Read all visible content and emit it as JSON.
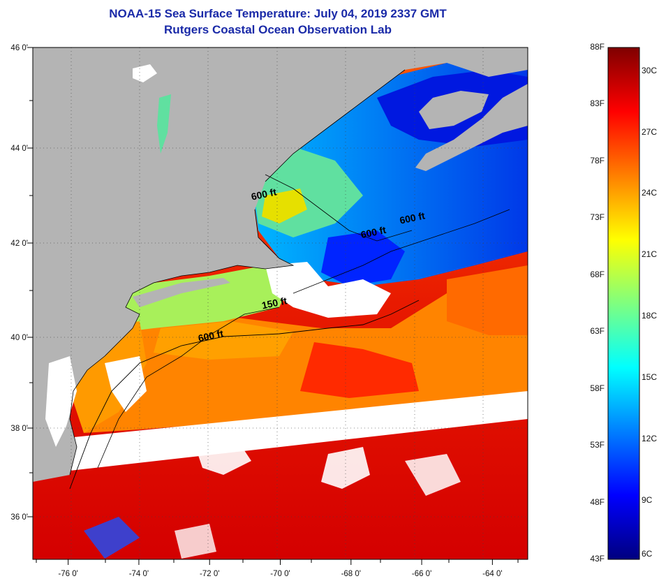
{
  "title": "NOAA-15 Sea Surface Temperature:  July 04, 2019 2337 GMT",
  "subtitle": "Rutgers Coastal Ocean Observation Lab",
  "map": {
    "lon_range": [
      -77,
      -63
    ],
    "lat_range": [
      35,
      46
    ],
    "lon_ticks": [
      {
        "value": -76,
        "label": "-76 0'"
      },
      {
        "value": -74,
        "label": "-74 0'"
      },
      {
        "value": -72,
        "label": "-72 0'"
      },
      {
        "value": -70,
        "label": "-70 0'"
      },
      {
        "value": -68,
        "label": "-68 0'"
      },
      {
        "value": -66,
        "label": "-66 0'"
      },
      {
        "value": -64,
        "label": "-64 0'"
      }
    ],
    "lat_ticks": [
      {
        "value": 46,
        "label": "46 0'"
      },
      {
        "value": 44,
        "label": "44 0'"
      },
      {
        "value": 42,
        "label": "42 0'"
      },
      {
        "value": 40,
        "label": "40 0'"
      },
      {
        "value": 38,
        "label": "38 0'"
      },
      {
        "value": 36,
        "label": "36 0'"
      }
    ],
    "contour_labels": [
      {
        "text": "600 ft",
        "lon": -70.8,
        "lat": 42.9
      },
      {
        "text": "600 ft",
        "lon": -66.6,
        "lat": 42.4
      },
      {
        "text": "600 ft",
        "lon": -67.7,
        "lat": 42.1
      },
      {
        "text": "150 ft",
        "lon": -70.5,
        "lat": 40.6
      },
      {
        "text": "600 ft",
        "lon": -72.3,
        "lat": 39.9
      }
    ],
    "land_color": "#b4b4b4",
    "cloud_color": "#ffffff"
  },
  "colorbar": {
    "fahrenheit": [
      "88F",
      "83F",
      "78F",
      "73F",
      "68F",
      "63F",
      "58F",
      "53F",
      "48F",
      "43F"
    ],
    "celsius": [
      "30C",
      "27C",
      "24C",
      "21C",
      "18C",
      "15C",
      "12C",
      "9C",
      "6C"
    ],
    "f_range": [
      43,
      88
    ],
    "colors": [
      "#00007f",
      "#0000ff",
      "#007fff",
      "#00ffff",
      "#7fff7f",
      "#ffff00",
      "#ff7f00",
      "#ff0000",
      "#7f0000"
    ]
  }
}
